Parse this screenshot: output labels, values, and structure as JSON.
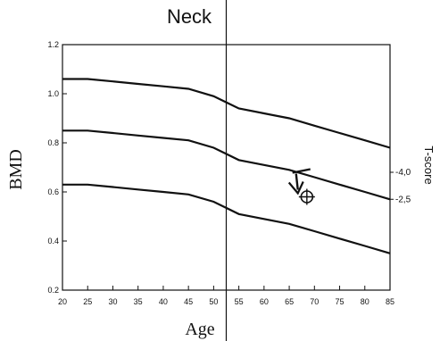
{
  "chart_data": {
    "type": "line",
    "title": "Neck",
    "xlabel": "Age",
    "ylabel": "BMD",
    "y2label": "T-score",
    "xlim": [
      20,
      85
    ],
    "ylim": [
      0.2,
      1.2
    ],
    "x_ticks": [
      20,
      25,
      30,
      35,
      40,
      45,
      50,
      55,
      60,
      65,
      70,
      75,
      80,
      85
    ],
    "y_ticks": [
      "0.2",
      "0.4",
      "0.6",
      "0.8",
      "1.0",
      "1.2"
    ],
    "y_tick_values": [
      0.2,
      0.4,
      0.6,
      0.8,
      1.0,
      1.2
    ],
    "tscore_labels": [
      {
        "label": "-4,0",
        "y": 0.68
      },
      {
        "label": "-2,5",
        "y": 0.57
      }
    ],
    "vertical_line_age": 52.5,
    "series": [
      {
        "x": [
          20,
          25,
          30,
          35,
          40,
          45,
          50,
          55,
          60,
          65,
          70,
          75,
          80,
          85
        ],
        "values": [
          1.06,
          1.06,
          1.05,
          1.04,
          1.03,
          1.02,
          0.99,
          0.94,
          0.92,
          0.9,
          0.87,
          0.84,
          0.81,
          0.78
        ]
      },
      {
        "x": [
          20,
          25,
          30,
          35,
          40,
          45,
          50,
          55,
          60,
          65,
          70,
          75,
          80,
          85
        ],
        "values": [
          0.85,
          0.85,
          0.84,
          0.83,
          0.82,
          0.81,
          0.78,
          0.73,
          0.71,
          0.69,
          0.66,
          0.63,
          0.6,
          0.57
        ]
      },
      {
        "x": [
          20,
          25,
          30,
          35,
          40,
          45,
          50,
          55,
          60,
          65,
          70,
          75,
          80,
          85
        ],
        "values": [
          0.63,
          0.63,
          0.62,
          0.61,
          0.6,
          0.59,
          0.56,
          0.51,
          0.49,
          0.47,
          0.44,
          0.41,
          0.38,
          0.35
        ]
      }
    ],
    "markers": [
      {
        "type": "arrow",
        "x": 66,
        "y": 0.66
      },
      {
        "type": "circle-plus",
        "x": 68.5,
        "y": 0.58
      }
    ],
    "grid": false
  }
}
